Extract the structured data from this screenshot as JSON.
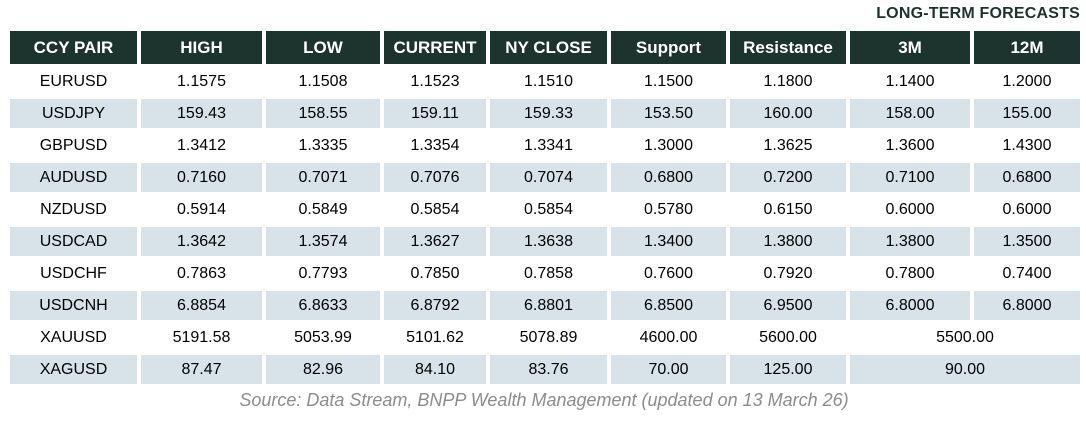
{
  "header_label": "LONG-TERM FORECASTS",
  "footer": "Source: Data Stream, BNPP Wealth Management (updated on 13 March 26)",
  "colors": {
    "header_bg": "#1d332e",
    "alt_row_bg": "#d7e2e9",
    "header_text": "#ffffff",
    "body_text": "#000000",
    "footer_text": "#8c8c8c"
  },
  "chart_data": {
    "type": "table",
    "title": "LONG-TERM FORECASTS",
    "columns": [
      "CCY PAIR",
      "HIGH",
      "LOW",
      "CURRENT",
      "NY CLOSE",
      "Support",
      "Resistance",
      "3M",
      "12M"
    ],
    "rows": [
      {
        "pair": "EURUSD",
        "high": "1.1575",
        "low": "1.1508",
        "current": "1.1523",
        "ny_close": "1.1510",
        "support": "1.1500",
        "resistance": "1.1800",
        "m3": "1.1400",
        "m12": "1.2000"
      },
      {
        "pair": "USDJPY",
        "high": "159.43",
        "low": "158.55",
        "current": "159.11",
        "ny_close": "159.33",
        "support": "153.50",
        "resistance": "160.00",
        "m3": "158.00",
        "m12": "155.00"
      },
      {
        "pair": "GBPUSD",
        "high": "1.3412",
        "low": "1.3335",
        "current": "1.3354",
        "ny_close": "1.3341",
        "support": "1.3000",
        "resistance": "1.3625",
        "m3": "1.3600",
        "m12": "1.4300"
      },
      {
        "pair": "AUDUSD",
        "high": "0.7160",
        "low": "0.7071",
        "current": "0.7076",
        "ny_close": "0.7074",
        "support": "0.6800",
        "resistance": "0.7200",
        "m3": "0.7100",
        "m12": "0.6800"
      },
      {
        "pair": "NZDUSD",
        "high": "0.5914",
        "low": "0.5849",
        "current": "0.5854",
        "ny_close": "0.5854",
        "support": "0.5780",
        "resistance": "0.6150",
        "m3": "0.6000",
        "m12": "0.6000"
      },
      {
        "pair": "USDCAD",
        "high": "1.3642",
        "low": "1.3574",
        "current": "1.3627",
        "ny_close": "1.3638",
        "support": "1.3400",
        "resistance": "1.3800",
        "m3": "1.3800",
        "m12": "1.3500"
      },
      {
        "pair": "USDCHF",
        "high": "0.7863",
        "low": "0.7793",
        "current": "0.7850",
        "ny_close": "0.7858",
        "support": "0.7600",
        "resistance": "0.7920",
        "m3": "0.7800",
        "m12": "0.7400"
      },
      {
        "pair": "USDCNH",
        "high": "6.8854",
        "low": "6.8633",
        "current": "6.8792",
        "ny_close": "6.8801",
        "support": "6.8500",
        "resistance": "6.9500",
        "m3": "6.8000",
        "m12": "6.8000"
      },
      {
        "pair": "XAUUSD",
        "high": "5191.58",
        "low": "5053.99",
        "current": "5101.62",
        "ny_close": "5078.89",
        "support": "4600.00",
        "resistance": "5600.00",
        "long_term": "5500.00"
      },
      {
        "pair": "XAGUSD",
        "high": "87.47",
        "low": "82.96",
        "current": "84.10",
        "ny_close": "83.76",
        "support": "70.00",
        "resistance": "125.00",
        "long_term": "90.00"
      }
    ],
    "layout": {
      "merged_cells_note": "XAUUSD and XAGUSD rows merge the 3M and 12M columns into a single long_term cell",
      "alt_row_shading": "every second data row shaded light blue",
      "source_position": "centered below table"
    },
    "source": "Source: Data Stream, BNPP Wealth Management (updated on 13 March 26)"
  }
}
